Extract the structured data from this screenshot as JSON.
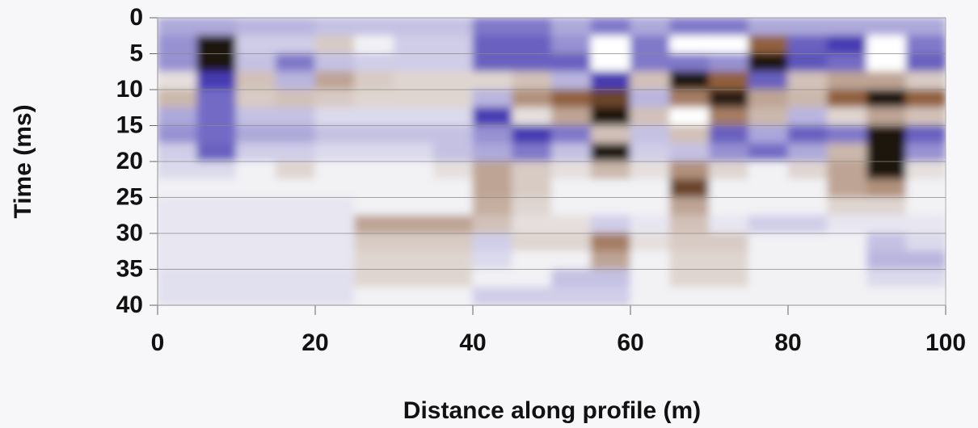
{
  "chart_data": {
    "type": "heatmap",
    "x_label": "Distance along profile (m)",
    "y_label": "Time (ms)",
    "xlim": [
      0,
      100
    ],
    "xticks": [
      0,
      20,
      40,
      60,
      80,
      100
    ],
    "ylim": [
      0,
      40
    ],
    "y_inverted": true,
    "yticks": [
      0,
      5,
      10,
      15,
      20,
      25,
      30,
      35,
      40
    ],
    "grid": true,
    "background_color": "#f2f2f5",
    "positive_color": "#8a5632",
    "negative_color": "#3b2fae",
    "saturated_positive_color": "#1c1611",
    "saturated_negative_color": "#ffffff",
    "z": [
      [
        -0.6,
        -0.6,
        -0.5,
        -0.5,
        -0.4,
        -0.4,
        -0.4,
        -0.4,
        -1,
        -1,
        -0.6,
        -1,
        -0.6,
        -1,
        -1,
        -0.6,
        -0.6,
        -0.6,
        -0.6,
        -0.6
      ],
      [
        -0.8,
        2.5,
        -0.3,
        -0.3,
        0.4,
        0,
        -0.3,
        -0.3,
        -1.2,
        -1.2,
        -0.8,
        -2.5,
        -1,
        -2.5,
        -2.5,
        1.5,
        -1.2,
        -1.5,
        -2.5,
        -1
      ],
      [
        -0.8,
        2.5,
        -0.4,
        -1,
        -0.4,
        -0.3,
        -0.3,
        -0.3,
        -1.2,
        -1.2,
        -1.2,
        -2.5,
        -1,
        -1,
        -0.8,
        2.5,
        -1.3,
        -1.8,
        -2.5,
        -1.2
      ],
      [
        0.2,
        -1.5,
        0.5,
        -0.5,
        0.8,
        0.4,
        0.3,
        0.3,
        0.3,
        0.5,
        -0.5,
        -1.5,
        0.5,
        2.5,
        1.5,
        -1.2,
        0.5,
        0.8,
        0.8,
        0.4
      ],
      [
        0.6,
        -1.8,
        0.4,
        0.5,
        0.4,
        0.3,
        0.3,
        0.3,
        -0.5,
        1,
        1.5,
        1.8,
        -0.5,
        1.2,
        2.2,
        0.8,
        0.6,
        1.5,
        2.5,
        1.5
      ],
      [
        -0.6,
        -1.8,
        -0.4,
        -0.4,
        -0.2,
        -0.2,
        -0.2,
        -0.2,
        -1.5,
        0.2,
        0.8,
        2.5,
        0.5,
        -2.5,
        1.2,
        0.6,
        -0.5,
        0.3,
        0.8,
        0.5
      ],
      [
        -0.8,
        -1.8,
        -0.6,
        -0.6,
        -0.4,
        -0.4,
        -0.4,
        -0.4,
        -0.8,
        -1.5,
        -1,
        0.5,
        -0.4,
        0.5,
        -1.2,
        -2,
        -1.2,
        -1,
        2.5,
        -1.2
      ],
      [
        -0.3,
        -1.2,
        -0.3,
        -0.3,
        -0.2,
        -0.2,
        -0.2,
        -0.4,
        -0.6,
        -1,
        -0.4,
        2.5,
        -0.3,
        -0.4,
        -0.8,
        -1.8,
        -0.6,
        0.6,
        2.5,
        -0.8
      ],
      [
        -0.2,
        -0.2,
        0,
        0.3,
        0,
        0,
        0,
        0.2,
        0.8,
        0.4,
        0.2,
        0.6,
        0.2,
        1,
        0.3,
        0,
        0.3,
        0.8,
        2.5,
        0.2
      ],
      [
        0,
        0,
        0,
        0,
        0,
        0,
        0,
        0,
        0.8,
        0.4,
        0,
        0,
        0,
        1.8,
        0,
        0,
        0,
        0.8,
        1,
        0
      ],
      [
        -0.1,
        -0.1,
        -0.1,
        -0.1,
        -0.1,
        0,
        0,
        0,
        0.7,
        0.3,
        0,
        0,
        0,
        0.8,
        0,
        0,
        0,
        0.3,
        0.3,
        0
      ],
      [
        -0.1,
        -0.1,
        -0.1,
        -0.1,
        -0.1,
        0.8,
        0.8,
        0.8,
        0.5,
        0.2,
        0.2,
        -0.3,
        -0.1,
        0.5,
        -0.1,
        -0.3,
        -0.3,
        -0.1,
        -0.1,
        -0.1
      ],
      [
        -0.1,
        -0.1,
        -0.1,
        -0.1,
        -0.1,
        0.4,
        0.4,
        0.4,
        -0.3,
        0.3,
        0.3,
        1.2,
        0.2,
        0.4,
        0.4,
        0,
        0,
        0,
        -0.4,
        -0.2
      ],
      [
        -0.1,
        -0.1,
        -0.1,
        -0.1,
        -0.1,
        0.3,
        0.3,
        0.3,
        -0.2,
        0,
        0,
        0.8,
        0,
        0.3,
        0.3,
        0,
        0,
        0,
        -0.5,
        -0.5
      ],
      [
        -0.15,
        -0.15,
        -0.15,
        -0.15,
        -0.15,
        0.3,
        0.3,
        0.3,
        0,
        0,
        -0.4,
        -0.4,
        0,
        0.3,
        0.3,
        0,
        0,
        0,
        -0.2,
        -0.2
      ],
      [
        -0.15,
        -0.15,
        -0.15,
        -0.15,
        -0.15,
        0,
        0,
        0,
        -0.3,
        -0.3,
        -0.3,
        -0.3,
        0,
        0,
        0,
        0,
        0,
        0,
        0,
        0
      ]
    ]
  }
}
